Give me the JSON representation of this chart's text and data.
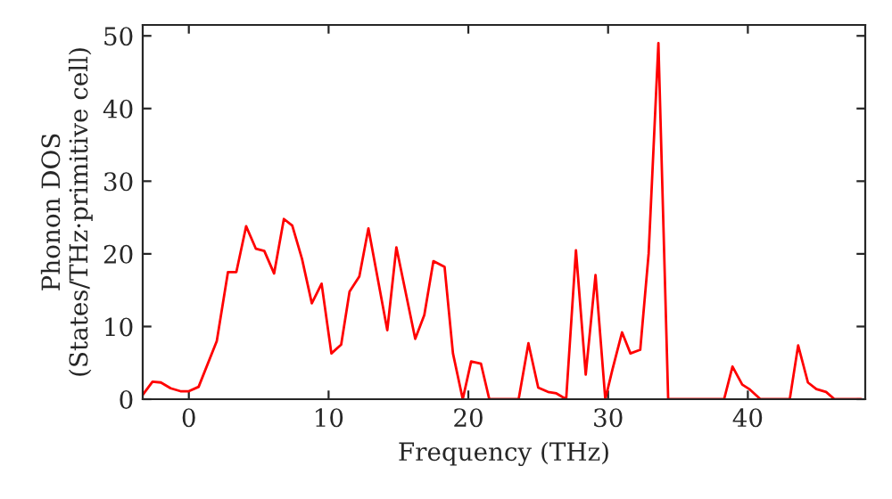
{
  "chart_data": {
    "type": "line",
    "xlabel": "Frequency (THz)",
    "ylabel": "Phonon DOS\n(States/THz·primitive cell)",
    "x": [
      -3.3,
      -2.6,
      -2.0,
      -1.3,
      -0.6,
      0,
      0.7,
      2.0,
      2.8,
      3.4,
      4.1,
      4.8,
      5.4,
      6.1,
      6.8,
      7.4,
      8.1,
      8.8,
      9.5,
      10.2,
      10.9,
      11.5,
      12.2,
      12.85,
      14.2,
      14.85,
      16.2,
      16.85,
      17.5,
      18.3,
      18.9,
      19.6,
      20.2,
      20.9,
      21.5,
      23.6,
      24.3,
      25,
      25.7,
      26.3,
      27,
      27.7,
      28.4,
      29.1,
      29.8,
      30.3,
      31,
      31.6,
      32.3,
      32.9,
      33.6,
      34.3,
      38.3,
      38.9,
      39.6,
      40.1,
      40.9,
      43,
      43.6,
      44.3,
      44.9,
      45.6,
      46.2,
      48.1
    ],
    "series": [
      {
        "color": "#ff0000",
        "values": [
          0.6,
          2.4,
          2.3,
          1.5,
          1.1,
          1.1,
          1.7,
          8.0,
          17.5,
          17.5,
          23.8,
          20.7,
          20.4,
          17.3,
          24.8,
          23.9,
          19.3,
          13.2,
          15.9,
          6.3,
          7.5,
          14.8,
          16.9,
          23.5,
          9.5,
          20.9,
          8.3,
          11.6,
          19.0,
          18.2,
          6.3,
          0,
          5.2,
          4.9,
          0,
          0,
          7.7,
          1.6,
          1.0,
          0.8,
          0,
          20.5,
          3.4,
          17.1,
          0,
          4,
          9.2,
          6.3,
          6.8,
          20,
          49,
          0,
          0,
          4.5,
          2,
          1.4,
          0,
          0,
          7.4,
          2.3,
          1.4,
          1,
          0,
          0
        ]
      }
    ],
    "xlim": [
      -3.3,
      48.4
    ],
    "ylim": [
      0,
      51.5
    ],
    "xticks": [
      0,
      10,
      20,
      30,
      40
    ],
    "yticks": [
      0,
      10,
      20,
      30,
      40,
      50
    ],
    "line_style": "solid",
    "marker": "none",
    "grid": false,
    "legend": false
  }
}
